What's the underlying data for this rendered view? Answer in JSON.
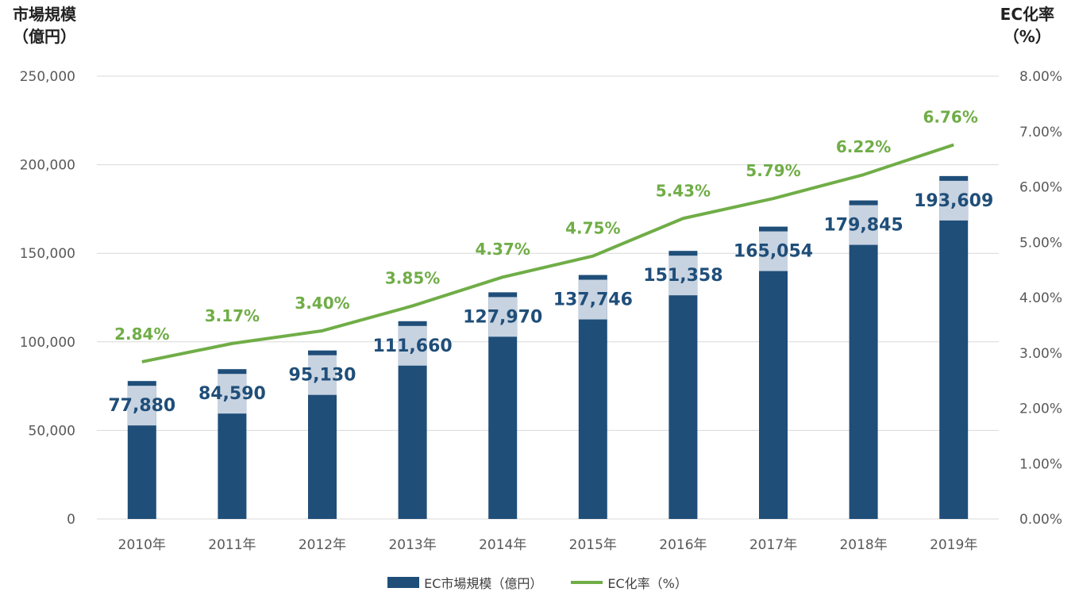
{
  "chart_data": {
    "type": "bar+line",
    "categories": [
      "2010年",
      "2011年",
      "2012年",
      "2013年",
      "2014年",
      "2015年",
      "2016年",
      "2017年",
      "2018年",
      "2019年"
    ],
    "series": [
      {
        "name": "EC市場規模（億円）",
        "type": "bar",
        "axis": "left",
        "values": [
          77880,
          84590,
          95130,
          111660,
          127970,
          137746,
          151358,
          165054,
          179845,
          193609
        ],
        "labels": [
          "77,880",
          "84,590",
          "95,130",
          "111,660",
          "127,970",
          "137,746",
          "151,358",
          "165,054",
          "179,845",
          "193,609"
        ]
      },
      {
        "name": "EC化率（%）",
        "type": "line",
        "axis": "right",
        "values": [
          2.84,
          3.17,
          3.4,
          3.85,
          4.37,
          4.75,
          5.43,
          5.79,
          6.22,
          6.76
        ],
        "labels": [
          "2.84%",
          "3.17%",
          "3.40%",
          "3.85%",
          "4.37%",
          "4.75%",
          "5.43%",
          "5.79%",
          "6.22%",
          "6.76%"
        ]
      }
    ],
    "left_axis": {
      "title_line1": "市場規模",
      "title_line2": "（億円）",
      "ylim": [
        0,
        250000
      ],
      "ticks": [
        "0",
        "50,000",
        "100,000",
        "150,000",
        "200,000",
        "250,000"
      ]
    },
    "right_axis": {
      "title_line1": "EC化率",
      "title_line2": "（%）",
      "ylim": [
        0,
        8
      ],
      "ticks": [
        "0.00%",
        "1.00%",
        "2.00%",
        "3.00%",
        "4.00%",
        "5.00%",
        "6.00%",
        "7.00%",
        "8.00%"
      ]
    },
    "grid": true,
    "legend_position": "bottom",
    "colors": {
      "bar": "#1f4e79",
      "bar_band": "#c8d3e1",
      "line": "#70ad47",
      "grid": "#d9d9d9"
    }
  }
}
